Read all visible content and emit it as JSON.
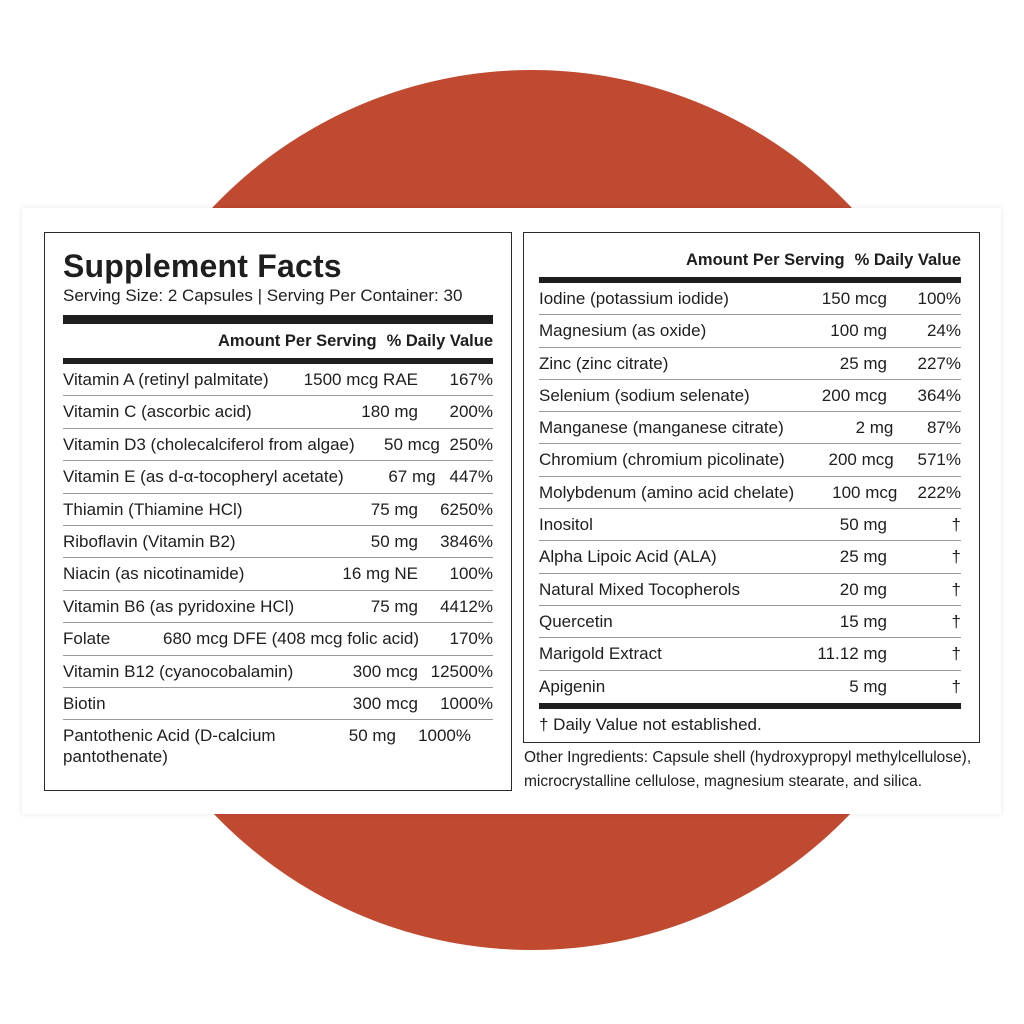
{
  "title": "Supplement Facts",
  "serving": "Serving Size: 2 Capsules | Serving Per Container: 30",
  "header": {
    "amount": "Amount Per Serving",
    "dv": "% Daily Value"
  },
  "left_rows": [
    {
      "name": "Vitamin A (retinyl palmitate)",
      "amount": "1500 mcg RAE",
      "dv": "167%"
    },
    {
      "name": "Vitamin C (ascorbic acid)",
      "amount": "180 mg",
      "dv": "200%"
    },
    {
      "name": "Vitamin D3 (cholecalciferol from algae)",
      "amount": "50 mcg",
      "dv": "250%"
    },
    {
      "name": "Vitamin E (as d-α-tocopheryl acetate)",
      "amount": "67 mg",
      "dv": "447%"
    },
    {
      "name": "Thiamin (Thiamine HCl)",
      "amount": "75 mg",
      "dv": "6250%"
    },
    {
      "name": "Riboflavin (Vitamin B2)",
      "amount": "50 mg",
      "dv": "3846%"
    },
    {
      "name": "Niacin (as nicotinamide)",
      "amount": "16 mg NE",
      "dv": "100%"
    },
    {
      "name": "Vitamin B6 (as pyridoxine HCl)",
      "amount": "75 mg",
      "dv": "4412%"
    },
    {
      "name": "Folate",
      "amount": "680 mcg DFE (408 mcg folic acid)",
      "dv": "170%"
    },
    {
      "name": "Vitamin B12 (cyanocobalamin)",
      "amount": "300 mcg",
      "dv": "12500%"
    },
    {
      "name": "Biotin",
      "amount": "300 mcg",
      "dv": "1000%"
    },
    {
      "name": "Pantothenic Acid (D-calcium pantothenate)",
      "amount": "50 mg",
      "dv": "1000%"
    }
  ],
  "right_rows": [
    {
      "name": "Iodine (potassium iodide)",
      "amount": "150 mcg",
      "dv": "100%"
    },
    {
      "name": "Magnesium (as oxide)",
      "amount": "100 mg",
      "dv": "24%"
    },
    {
      "name": "Zinc (zinc citrate)",
      "amount": "25 mg",
      "dv": "227%"
    },
    {
      "name": "Selenium (sodium selenate)",
      "amount": "200 mcg",
      "dv": "364%"
    },
    {
      "name": "Manganese (manganese citrate)",
      "amount": "2 mg",
      "dv": "87%"
    },
    {
      "name": "Chromium (chromium picolinate)",
      "amount": "200 mcg",
      "dv": "571%"
    },
    {
      "name": "Molybdenum (amino acid chelate)",
      "amount": "100 mcg",
      "dv": "222%"
    },
    {
      "name": "Inositol",
      "amount": "50 mg",
      "dv": "†"
    },
    {
      "name": "Alpha Lipoic Acid (ALA)",
      "amount": "25 mg",
      "dv": "†"
    },
    {
      "name": "Natural Mixed Tocopherols",
      "amount": "20 mg",
      "dv": "†"
    },
    {
      "name": "Quercetin",
      "amount": "15 mg",
      "dv": "†"
    },
    {
      "name": "Marigold Extract",
      "amount": "11.12 mg",
      "dv": "†"
    },
    {
      "name": "Apigenin",
      "amount": "5 mg",
      "dv": "†"
    }
  ],
  "dagger_note": "† Daily Value not established.",
  "other_ingredients": "Other Ingredients: Capsule shell (hydroxypropyl methylcellulose), microcrystalline cellulose, magnesium stearate, and silica.",
  "colors": {
    "accent_circle": "#c04a30"
  }
}
